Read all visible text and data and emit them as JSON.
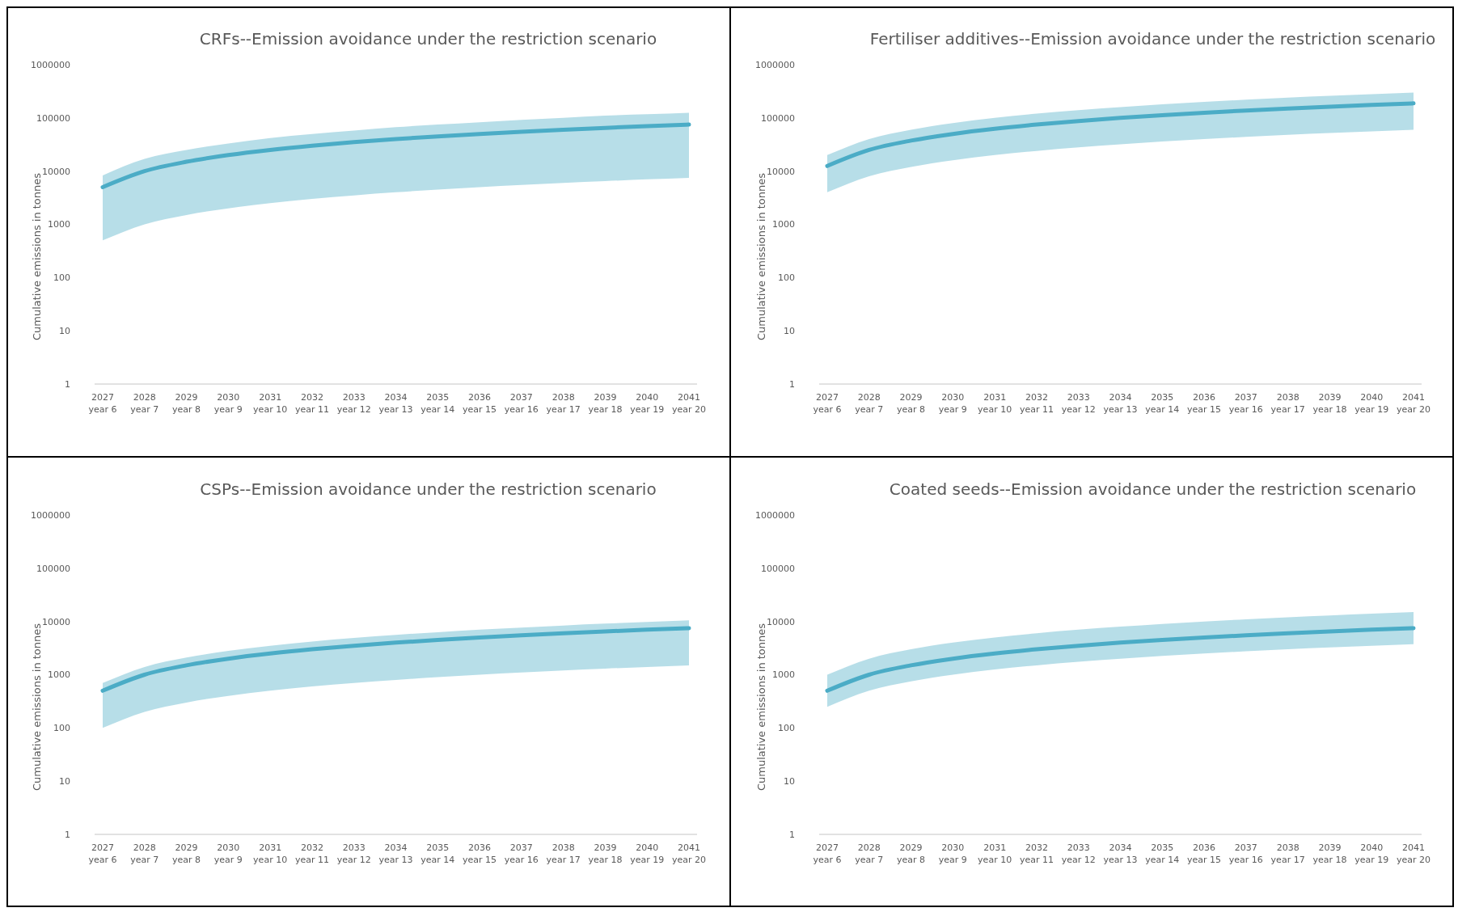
{
  "chart_data": [
    {
      "type": "line",
      "title": "CRFs--Emission avoidance under the restriction scenario",
      "ylabel": "Cumulative emissions in tonnes",
      "log": "y",
      "ylim": [
        1,
        1000000
      ],
      "yticks": [
        1,
        10,
        100,
        1000,
        10000,
        100000,
        1000000
      ],
      "grid": false,
      "marker": "none",
      "line_style": "solid",
      "categories": [
        "2027\nyear 6",
        "2028\nyear 7",
        "2029\nyear 8",
        "2030\nyear 9",
        "2031\nyear 10",
        "2032\nyear 11",
        "2033\nyear 12",
        "2034\nyear 13",
        "2035\nyear 14",
        "2036\nyear 15",
        "2037\nyear 16",
        "2038\nyear 17",
        "2039\nyear 18",
        "2040\nyear 19",
        "2041\nyear 20"
      ],
      "series": [
        {
          "color": "#4bacc6",
          "values": [
            5000,
            10000,
            15000,
            20000,
            25000,
            30000,
            35000,
            40000,
            45000,
            50000,
            55000,
            60000,
            65000,
            70000,
            75000
          ],
          "lower": [
            500,
            1000,
            1500,
            2000,
            2500,
            3000,
            3500,
            4000,
            4500,
            5000,
            5500,
            6000,
            6500,
            7000,
            7500
          ],
          "upper": [
            8300,
            17000,
            25000,
            33000,
            42000,
            50000,
            58000,
            67000,
            75000,
            83000,
            92000,
            100000,
            110000,
            117000,
            125000
          ]
        }
      ]
    },
    {
      "type": "line",
      "title": "Fertiliser additives--Emission avoidance under the restriction scenario",
      "ylabel": "Cumulative emissions in tonnes",
      "log": "y",
      "ylim": [
        1,
        1000000
      ],
      "yticks": [
        1,
        10,
        100,
        1000,
        10000,
        100000,
        1000000
      ],
      "grid": false,
      "marker": "none",
      "line_style": "solid",
      "categories": [
        "2027\nyear 6",
        "2028\nyear 7",
        "2029\nyear 8",
        "2030\nyear 9",
        "2031\nyear 10",
        "2032\nyear 11",
        "2033\nyear 12",
        "2034\nyear 13",
        "2035\nyear 14",
        "2036\nyear 15",
        "2037\nyear 16",
        "2038\nyear 17",
        "2039\nyear 18",
        "2040\nyear 19",
        "2041\nyear 20"
      ],
      "series": [
        {
          "color": "#4bacc6",
          "values": [
            12500,
            25000,
            37500,
            50000,
            62500,
            75000,
            87500,
            100000,
            112500,
            125000,
            137500,
            150000,
            162500,
            175000,
            187500
          ],
          "lower": [
            4000,
            8000,
            12000,
            16000,
            20000,
            24000,
            28000,
            32000,
            36000,
            40000,
            44000,
            48000,
            52000,
            56000,
            60000
          ],
          "upper": [
            20000,
            40000,
            60000,
            80000,
            100000,
            120000,
            140000,
            160000,
            180000,
            200000,
            220000,
            240000,
            260000,
            280000,
            300000
          ]
        }
      ]
    },
    {
      "type": "line",
      "title": "CSPs--Emission avoidance under the restriction scenario",
      "ylabel": "Cumulative emissions in tonnes",
      "log": "y",
      "ylim": [
        1,
        1000000
      ],
      "yticks": [
        1,
        10,
        100,
        1000,
        10000,
        100000,
        1000000
      ],
      "grid": false,
      "marker": "none",
      "line_style": "solid",
      "categories": [
        "2027\nyear 6",
        "2028\nyear 7",
        "2029\nyear 8",
        "2030\nyear 9",
        "2031\nyear 10",
        "2032\nyear 11",
        "2033\nyear 12",
        "2034\nyear 13",
        "2035\nyear 14",
        "2036\nyear 15",
        "2037\nyear 16",
        "2038\nyear 17",
        "2039\nyear 18",
        "2040\nyear 19",
        "2041\nyear 20"
      ],
      "series": [
        {
          "color": "#4bacc6",
          "values": [
            500,
            1000,
            1500,
            2000,
            2500,
            3000,
            3500,
            4000,
            4500,
            5000,
            5500,
            6000,
            6500,
            7000,
            7500
          ],
          "lower": [
            100,
            200,
            300,
            400,
            500,
            600,
            700,
            800,
            900,
            1000,
            1100,
            1200,
            1300,
            1400,
            1500
          ],
          "upper": [
            700,
            1400,
            2100,
            2800,
            3500,
            4200,
            4900,
            5600,
            6300,
            7000,
            7700,
            8400,
            9100,
            9800,
            10500
          ]
        }
      ]
    },
    {
      "type": "line",
      "title": "Coated seeds--Emission avoidance under the restriction scenario",
      "ylabel": "Cumulative emissions in tonnes",
      "log": "y",
      "ylim": [
        1,
        1000000
      ],
      "yticks": [
        1,
        10,
        100,
        1000,
        10000,
        100000,
        1000000
      ],
      "grid": false,
      "marker": "none",
      "line_style": "solid",
      "categories": [
        "2027\nyear 6",
        "2028\nyear 7",
        "2029\nyear 8",
        "2030\nyear 9",
        "2031\nyear 10",
        "2032\nyear 11",
        "2033\nyear 12",
        "2034\nyear 13",
        "2035\nyear 14",
        "2036\nyear 15",
        "2037\nyear 16",
        "2038\nyear 17",
        "2039\nyear 18",
        "2040\nyear 19",
        "2041\nyear 20"
      ],
      "series": [
        {
          "color": "#4bacc6",
          "values": [
            500,
            1000,
            1500,
            2000,
            2500,
            3000,
            3500,
            4000,
            4500,
            5000,
            5500,
            6000,
            6500,
            7000,
            7500
          ],
          "lower": [
            250,
            500,
            750,
            1000,
            1250,
            1500,
            1750,
            2000,
            2250,
            2500,
            2750,
            3000,
            3250,
            3500,
            3750
          ],
          "upper": [
            1000,
            2000,
            3000,
            4000,
            5000,
            6000,
            7000,
            8000,
            9000,
            10000,
            11000,
            12000,
            13000,
            14000,
            15000
          ]
        }
      ]
    }
  ]
}
